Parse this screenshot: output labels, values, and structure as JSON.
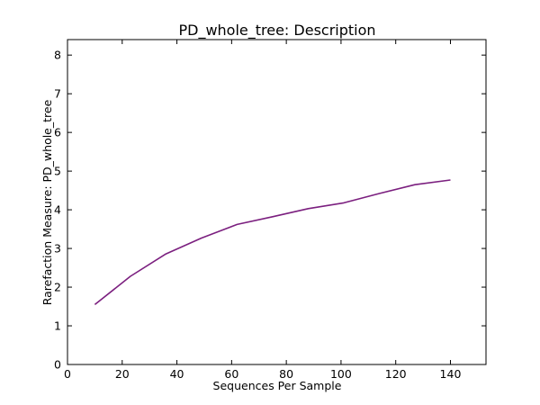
{
  "chart_data": {
    "type": "line",
    "title": "PD_whole_tree: Description",
    "xlabel": "Sequences Per Sample",
    "ylabel": "Rarefaction Measure: PD_whole_tree",
    "xlim": [
      0,
      153
    ],
    "ylim": [
      0,
      8.4
    ],
    "xticks": [
      0,
      20,
      40,
      60,
      80,
      100,
      120,
      140
    ],
    "yticks": [
      0,
      1,
      2,
      3,
      4,
      5,
      6,
      7,
      8
    ],
    "grid": false,
    "series": [
      {
        "color": "#7b1f7f",
        "x": [
          10,
          23,
          36,
          49,
          62,
          75,
          88,
          101,
          114,
          127,
          140
        ],
        "y": [
          1.55,
          2.28,
          2.86,
          3.27,
          3.62,
          3.82,
          4.03,
          4.18,
          4.42,
          4.65,
          4.77
        ]
      }
    ]
  }
}
